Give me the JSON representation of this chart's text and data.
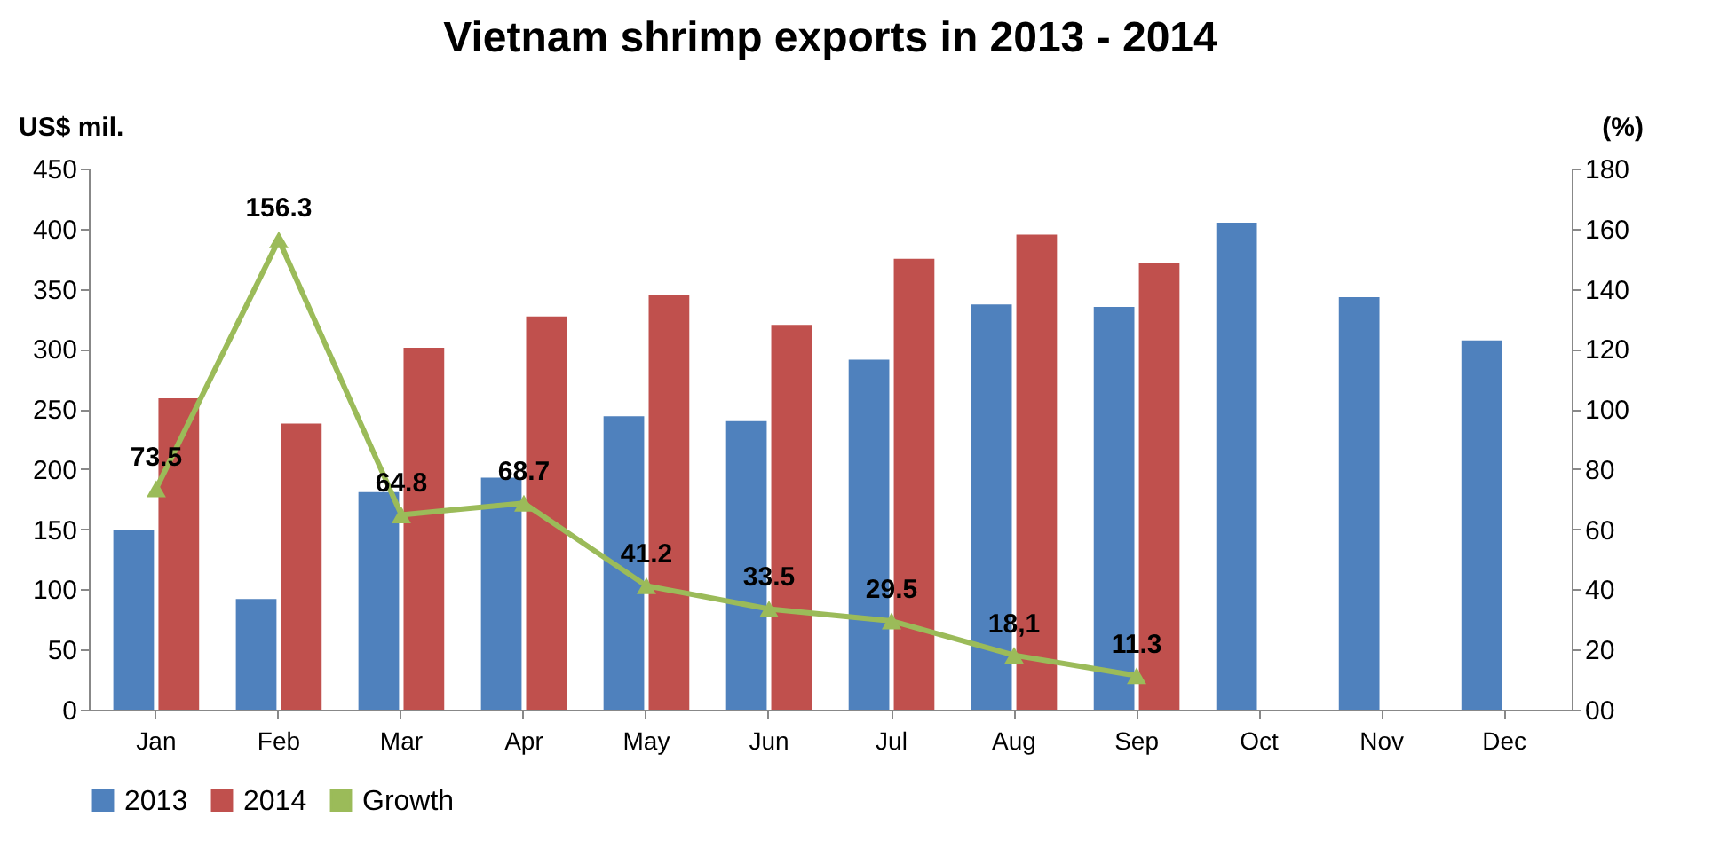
{
  "chart_data": {
    "type": "bar",
    "title": "Vietnam shrimp exports in 2013 - 2014",
    "ylabel": "US$ mil.",
    "y2label": "(%)",
    "categories": [
      "Jan",
      "Feb",
      "Mar",
      "Apr",
      "May",
      "Jun",
      "Jul",
      "Aug",
      "Sep",
      "Oct",
      "Nov",
      "Dec"
    ],
    "series": [
      {
        "name": "2013",
        "color": "#4f81bd",
        "values": [
          149,
          92,
          181,
          193,
          244,
          240,
          291,
          337,
          335,
          405,
          343,
          307
        ]
      },
      {
        "name": "2014",
        "color": "#c0504d",
        "values": [
          259,
          238,
          301,
          327,
          345,
          320,
          375,
          395,
          371,
          null,
          null,
          null
        ]
      },
      {
        "name": "Growth",
        "type": "line",
        "axis": "y2",
        "color": "#9bbb59",
        "marker": "triangle",
        "values": [
          73.5,
          156.3,
          64.8,
          68.7,
          41.2,
          33.5,
          29.5,
          18.1,
          11.3,
          null,
          null,
          null
        ],
        "value_labels": [
          "73.5",
          "156.3",
          "64.8",
          "68.7",
          "41.2",
          "33.5",
          "29.5",
          "18,1",
          "11.3",
          null,
          null,
          null
        ]
      }
    ],
    "ylim": [
      0,
      450
    ],
    "yticks": [
      0,
      50,
      100,
      150,
      200,
      250,
      300,
      350,
      400,
      450
    ],
    "y2lim": [
      0,
      180
    ],
    "y2ticks": [
      {
        "value": 0,
        "label": "00"
      },
      20,
      40,
      60,
      80,
      100,
      120,
      140,
      160,
      180
    ],
    "legend": "bottom",
    "grid": false
  }
}
